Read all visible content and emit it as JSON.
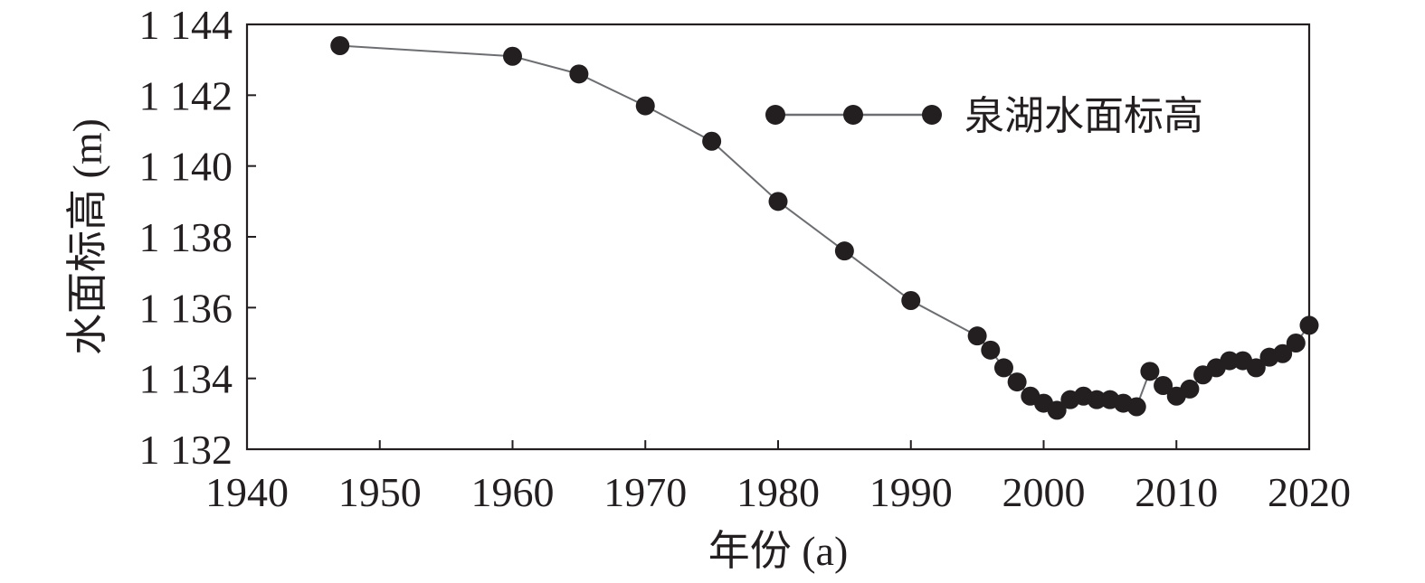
{
  "chart_data": {
    "type": "line",
    "title": "",
    "xlabel": "年份 (a)",
    "ylabel": "水面标高 (m)",
    "xlim": [
      1940,
      2020
    ],
    "ylim": [
      1132,
      1144
    ],
    "xticks": [
      1940,
      1950,
      1960,
      1970,
      1980,
      1990,
      2000,
      2010,
      2020
    ],
    "yticks": [
      1132,
      1134,
      1136,
      1138,
      1140,
      1142,
      1144
    ],
    "ytick_labels": [
      "1 132",
      "1 134",
      "1 136",
      "1 138",
      "1 140",
      "1 142",
      "1 144"
    ],
    "grid": false,
    "legend_position": "top-right",
    "series": [
      {
        "name": "泉湖水面标高",
        "color": "#231f20",
        "line_color": "#6d6e71",
        "marker": "circle",
        "points": [
          {
            "x": 1947,
            "y": 1143.4
          },
          {
            "x": 1960,
            "y": 1143.1
          },
          {
            "x": 1965,
            "y": 1142.6
          },
          {
            "x": 1970,
            "y": 1141.7
          },
          {
            "x": 1975,
            "y": 1140.7
          },
          {
            "x": 1980,
            "y": 1139.0
          },
          {
            "x": 1985,
            "y": 1137.6
          },
          {
            "x": 1990,
            "y": 1136.2
          },
          {
            "x": 1995,
            "y": 1135.2
          },
          {
            "x": 1996,
            "y": 1134.8
          },
          {
            "x": 1997,
            "y": 1134.3
          },
          {
            "x": 1998,
            "y": 1133.9
          },
          {
            "x": 1999,
            "y": 1133.5
          },
          {
            "x": 2000,
            "y": 1133.3
          },
          {
            "x": 2001,
            "y": 1133.1
          },
          {
            "x": 2002,
            "y": 1133.4
          },
          {
            "x": 2003,
            "y": 1133.5
          },
          {
            "x": 2004,
            "y": 1133.4
          },
          {
            "x": 2005,
            "y": 1133.4
          },
          {
            "x": 2006,
            "y": 1133.3
          },
          {
            "x": 2007,
            "y": 1133.2
          },
          {
            "x": 2008,
            "y": 1134.2
          },
          {
            "x": 2009,
            "y": 1133.8
          },
          {
            "x": 2010,
            "y": 1133.5
          },
          {
            "x": 2011,
            "y": 1133.7
          },
          {
            "x": 2012,
            "y": 1134.1
          },
          {
            "x": 2013,
            "y": 1134.3
          },
          {
            "x": 2014,
            "y": 1134.5
          },
          {
            "x": 2015,
            "y": 1134.5
          },
          {
            "x": 2016,
            "y": 1134.3
          },
          {
            "x": 2017,
            "y": 1134.6
          },
          {
            "x": 2018,
            "y": 1134.7
          },
          {
            "x": 2019,
            "y": 1135.0
          },
          {
            "x": 2020,
            "y": 1135.5
          }
        ]
      }
    ]
  }
}
